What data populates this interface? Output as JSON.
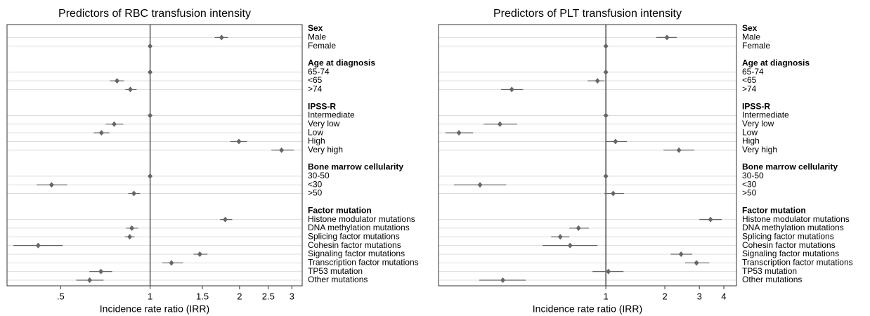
{
  "chart_data": [
    {
      "type": "forest",
      "title": "Predictors of RBC transfusion intensity",
      "xlabel": "Incidence rate ratio (IRR)",
      "xscale": "log",
      "xlim": [
        0.33,
        3.25
      ],
      "xticks": [
        {
          "value": 0.5,
          "label": ".5"
        },
        1,
        1.5,
        2,
        2.5,
        3
      ],
      "reference": 1,
      "color": "#666666",
      "grid": true,
      "groups": [
        {
          "name": "Sex",
          "categories": [
            "Male",
            "Female"
          ],
          "values": [
            1.74,
            1
          ],
          "ci_low": [
            1.65,
            null
          ],
          "ci_high": [
            1.83,
            null
          ]
        },
        {
          "name": "Age at diagnosis",
          "categories": [
            "65-74",
            "<65",
            ">74"
          ],
          "values": [
            1,
            0.774,
            0.858
          ],
          "ci_low": [
            null,
            0.733,
            0.826
          ],
          "ci_high": [
            null,
            0.817,
            0.901
          ]
        },
        {
          "name": "IPSS-R",
          "categories": [
            "Intermediate",
            "Very low",
            "Low",
            "High",
            "Very high"
          ],
          "values": [
            1,
            0.757,
            0.686,
            1.99,
            2.77
          ],
          "ci_low": [
            null,
            0.709,
            0.646,
            1.86,
            2.56
          ],
          "ci_high": [
            null,
            0.813,
            0.729,
            2.12,
            3.05
          ]
        },
        {
          "name": "Bone marrow cellularity",
          "categories": [
            "30-50",
            "<30",
            ">50"
          ],
          "values": [
            1,
            0.466,
            0.882
          ],
          "ci_low": [
            null,
            0.415,
            0.845
          ],
          "ci_high": [
            null,
            0.526,
            0.926
          ]
        },
        {
          "name": "Factor mutation",
          "categories": [
            "Histone modulator mutations",
            "DNA methylation mutations",
            "Splicing factor mutations",
            "Cohesin factor mutations",
            "Signaling factor mutations",
            "Transcription factor mutations",
            "TP53 mutation",
            "Other mutations"
          ],
          "values": [
            1.79,
            0.868,
            0.854,
            0.42,
            1.47,
            1.18,
            0.683,
            0.626
          ],
          "ci_low": [
            1.72,
            0.831,
            0.822,
            0.347,
            1.4,
            1.1,
            0.625,
            0.564
          ],
          "ci_high": [
            1.89,
            0.911,
            0.887,
            0.508,
            1.56,
            1.29,
            0.745,
            0.697
          ]
        }
      ]
    },
    {
      "type": "forest",
      "title": "Predictors of PLT transfusion intensity",
      "xlabel": "Incidence rate ratio (IRR)",
      "xscale": "log",
      "xlim": [
        0.14,
        4.64
      ],
      "xticks": [
        1,
        2,
        3,
        4
      ],
      "reference": 1,
      "color": "#666666",
      "grid": true,
      "groups": [
        {
          "name": "Sex",
          "categories": [
            "Male",
            "Female"
          ],
          "values": [
            2.05,
            1
          ],
          "ci_low": [
            1.81,
            null
          ],
          "ci_high": [
            2.3,
            null
          ]
        },
        {
          "name": "Age at diagnosis",
          "categories": [
            "65-74",
            "<65",
            ">74"
          ],
          "values": [
            1,
            0.906,
            0.331
          ],
          "ci_low": [
            null,
            0.807,
            0.292
          ],
          "ci_high": [
            null,
            0.984,
            0.378
          ]
        },
        {
          "name": "IPSS-R",
          "categories": [
            "Intermediate",
            "Very low",
            "Low",
            "High",
            "Very high"
          ],
          "values": [
            1,
            0.288,
            0.178,
            1.12,
            2.36
          ],
          "ci_low": [
            null,
            0.238,
            0.152,
            1.0,
            1.97
          ],
          "ci_high": [
            null,
            0.353,
            0.21,
            1.28,
            2.83
          ]
        },
        {
          "name": "Bone marrow cellularity",
          "categories": [
            "30-50",
            "<30",
            ">50"
          ],
          "values": [
            1,
            0.228,
            1.09
          ],
          "ci_low": [
            null,
            0.168,
            0.984
          ],
          "ci_high": [
            null,
            0.31,
            1.24
          ]
        },
        {
          "name": "Factor mutation",
          "categories": [
            "Histone modulator mutations",
            "DNA methylation mutations",
            "Splicing factor mutations",
            "Cohesin factor mutations",
            "Signaling factor mutations",
            "Transcription factor mutations",
            "TP53 mutation",
            "Other mutations"
          ],
          "values": [
            3.42,
            0.725,
            0.585,
            0.657,
            2.42,
            2.9,
            1.03,
            0.298
          ],
          "ci_low": [
            3.0,
            0.651,
            0.526,
            0.476,
            2.14,
            2.54,
            0.855,
            0.226
          ],
          "ci_high": [
            3.9,
            0.82,
            0.651,
            0.906,
            2.76,
            3.37,
            1.23,
            0.39
          ]
        }
      ]
    }
  ]
}
